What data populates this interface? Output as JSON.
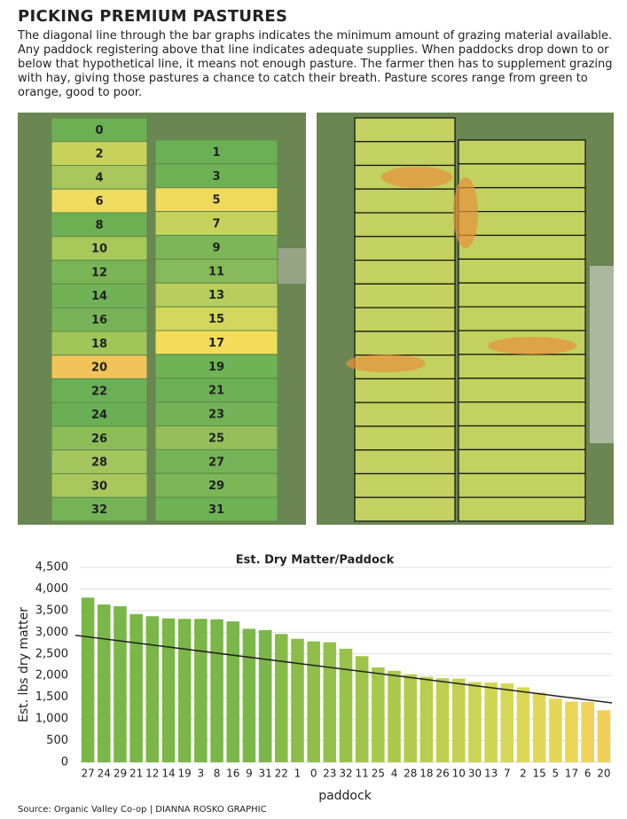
{
  "header": {
    "title": "PICKING PREMIUM PASTURES",
    "text": "The diagonal line through the bar graphs indicates the minimum amount of grazing material available. Any paddock registering above that line indicates adequate supplies. When paddocks drop down to or below that hypothetical line, it means not enough pasture. The farmer then has to supplement grazing with hay, giving those pastures a chance to catch their breath. Pasture scores range from green to orange, good to poor."
  },
  "map": {
    "left": [
      {
        "label": "0",
        "color": "#6db054"
      },
      {
        "label": "2",
        "color": "#c8d25a"
      },
      {
        "label": "4",
        "color": "#a8c85e"
      },
      {
        "label": "6",
        "color": "#f0dc5e"
      },
      {
        "label": "8",
        "color": "#6db054"
      },
      {
        "label": "10",
        "color": "#a7c95a"
      },
      {
        "label": "12",
        "color": "#79b556"
      },
      {
        "label": "14",
        "color": "#72b256"
      },
      {
        "label": "16",
        "color": "#78b457"
      },
      {
        "label": "18",
        "color": "#a2c559"
      },
      {
        "label": "20",
        "color": "#f2c35a"
      },
      {
        "label": "22",
        "color": "#6bb055"
      },
      {
        "label": "24",
        "color": "#6aaf55"
      },
      {
        "label": "26",
        "color": "#8cbd58"
      },
      {
        "label": "28",
        "color": "#a2c55d"
      },
      {
        "label": "30",
        "color": "#a9c85c"
      },
      {
        "label": "32",
        "color": "#74b356"
      }
    ],
    "right": [
      {
        "label": "1",
        "color": "#6ab055"
      },
      {
        "label": "3",
        "color": "#6fb256"
      },
      {
        "label": "5",
        "color": "#f0da5c"
      },
      {
        "label": "7",
        "color": "#c5d25c"
      },
      {
        "label": "9",
        "color": "#7db657"
      },
      {
        "label": "11",
        "color": "#86ba58"
      },
      {
        "label": "13",
        "color": "#b8cd5b"
      },
      {
        "label": "15",
        "color": "#d2d65d"
      },
      {
        "label": "17",
        "color": "#f3dc5a"
      },
      {
        "label": "19",
        "color": "#70b256"
      },
      {
        "label": "21",
        "color": "#6bb055"
      },
      {
        "label": "23",
        "color": "#72b357"
      },
      {
        "label": "25",
        "color": "#94bf59"
      },
      {
        "label": "27",
        "color": "#74b357"
      },
      {
        "label": "29",
        "color": "#7db657"
      },
      {
        "label": "31",
        "color": "#6fb256"
      }
    ]
  },
  "chart_data": {
    "type": "bar",
    "title": "Est. Dry Matter/Paddock",
    "xlabel": "paddock",
    "ylabel": "Est. lbs dry matter",
    "categories": [
      "27",
      "24",
      "29",
      "21",
      "12",
      "14",
      "19",
      "3",
      "8",
      "16",
      "9",
      "31",
      "22",
      "1",
      "0",
      "23",
      "32",
      "11",
      "25",
      "4",
      "28",
      "18",
      "26",
      "10",
      "30",
      "13",
      "7",
      "2",
      "15",
      "5",
      "17",
      "6",
      "20"
    ],
    "values": [
      3800,
      3640,
      3600,
      3420,
      3370,
      3320,
      3310,
      3310,
      3300,
      3250,
      3080,
      3050,
      2960,
      2850,
      2790,
      2770,
      2620,
      2450,
      2190,
      2110,
      2030,
      1970,
      1940,
      1930,
      1850,
      1840,
      1820,
      1730,
      1610,
      1470,
      1400,
      1390,
      1200
    ],
    "colors": [
      "#7ab648",
      "#7ab648",
      "#7ab648",
      "#7ab648",
      "#7ab648",
      "#7ab648",
      "#7ab648",
      "#7ab648",
      "#7ab648",
      "#7ab648",
      "#7ab648",
      "#7ab648",
      "#86bb48",
      "#8cbd48",
      "#90bf48",
      "#94c049",
      "#98c249",
      "#9ec54a",
      "#a7c94a",
      "#abc84c",
      "#b3cb4c",
      "#b9cd4e",
      "#bfd050",
      "#c4d152",
      "#cad353",
      "#d0d554",
      "#d6d755",
      "#dbd756",
      "#e1d757",
      "#e6d657",
      "#ebd558",
      "#efd358",
      "#f2cf58"
    ],
    "trend_line": [
      2930,
      1370
    ],
    "ylim": [
      0,
      4500
    ],
    "yticks": [
      0,
      500,
      {
        "value": 1000,
        "label": "1,000"
      },
      {
        "value": 1500,
        "label": "1,500"
      },
      {
        "value": 2000,
        "label": "2,000"
      },
      {
        "value": 2500,
        "label": "2,500"
      },
      {
        "value": 3000,
        "label": "3,000"
      },
      {
        "value": 3500,
        "label": "3,500"
      },
      {
        "value": 4000,
        "label": "4,000"
      },
      {
        "value": 4500,
        "label": "4,500"
      }
    ],
    "grid": true,
    "source": "Source: Organic Valley Co-op | DIANNA ROSKO GRAPHIC"
  }
}
